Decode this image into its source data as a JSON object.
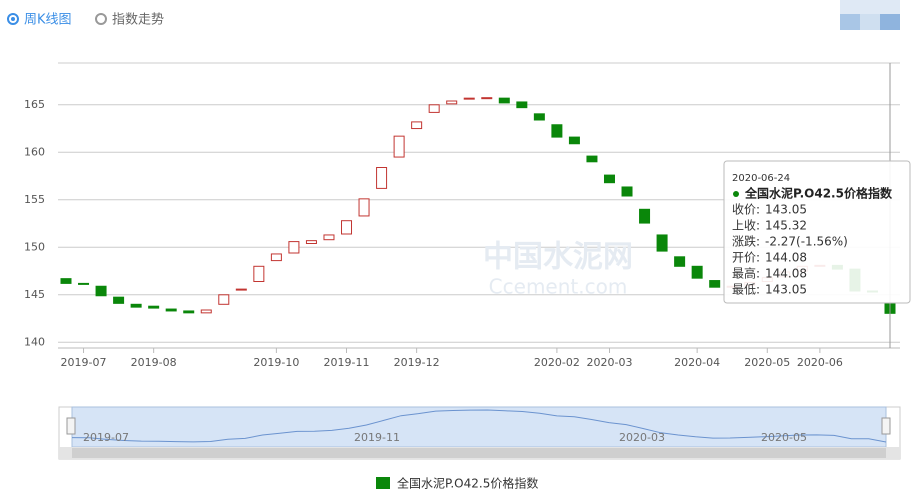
{
  "tabs": [
    "周K线图",
    "指数走势"
  ],
  "chart_data": {
    "type": "candlestick",
    "categories": [
      null,
      "2019-07",
      null,
      null,
      null,
      "2019-08",
      null,
      null,
      null,
      null,
      null,
      null,
      "2019-10",
      null,
      null,
      null,
      "2019-11",
      null,
      null,
      null,
      "2019-12",
      null,
      null,
      null,
      null,
      null,
      null,
      null,
      "2020-02",
      null,
      null,
      "2020-03",
      null,
      null,
      null,
      null,
      "2020-04",
      null,
      null,
      null,
      "2020-05",
      null,
      null,
      "2020-06",
      null,
      null,
      null,
      null
    ],
    "series": [
      {
        "name": "全国水泥P.O42.5价格指数",
        "up_color": "#c23531",
        "down_color": "#0a870a",
        "open": [
          146.7,
          146.2,
          145.9,
          144.75,
          144.0,
          143.8,
          143.5,
          143.3,
          143.1,
          144.0,
          145.5,
          146.4,
          148.6,
          149.4,
          150.4,
          150.8,
          151.4,
          153.3,
          156.2,
          159.5,
          162.5,
          164.2,
          165.1,
          165.6,
          165.7,
          165.7,
          165.3,
          164.05,
          162.9,
          161.6,
          159.6,
          157.6,
          156.35,
          154.0,
          151.3,
          149.0,
          148.0,
          146.5,
          145.8,
          146.0,
          146.4,
          146.9,
          147.5,
          148.0,
          148.1,
          147.7,
          145.4,
          144.08
        ],
        "close": [
          146.2,
          146.1,
          144.9,
          144.1,
          143.7,
          143.6,
          143.3,
          143.1,
          143.4,
          145.0,
          145.6,
          148.0,
          149.3,
          150.6,
          150.7,
          151.3,
          152.8,
          155.1,
          158.4,
          161.7,
          163.2,
          165.0,
          165.4,
          165.7,
          165.75,
          165.2,
          164.7,
          163.4,
          161.6,
          160.9,
          159.0,
          156.8,
          155.4,
          152.55,
          149.6,
          148.0,
          146.75,
          145.8,
          145.9,
          146.3,
          146.8,
          147.4,
          148.0,
          148.1,
          147.7,
          145.4,
          145.32,
          143.05
        ]
      }
    ],
    "ylim": [
      139.4,
      169.4
    ],
    "yticks": [
      140,
      145,
      150,
      155,
      160,
      165
    ],
    "grid": true,
    "watermark": [
      "中国水泥网",
      "Ccement.com"
    ],
    "tooltip": {
      "date": "2020-06-24",
      "rows": [
        [
          "收价:",
          "143.05"
        ],
        [
          "上收:",
          "145.32"
        ],
        [
          "涨跌:",
          "-2.27(-1.56%)"
        ],
        [
          "开价:",
          "144.08"
        ],
        [
          "最高:",
          "144.08"
        ],
        [
          "最低:",
          "143.05"
        ]
      ]
    },
    "navigator_labels": [
      "2019-07",
      "2019-11",
      "2020-03",
      "2020-05"
    ]
  }
}
